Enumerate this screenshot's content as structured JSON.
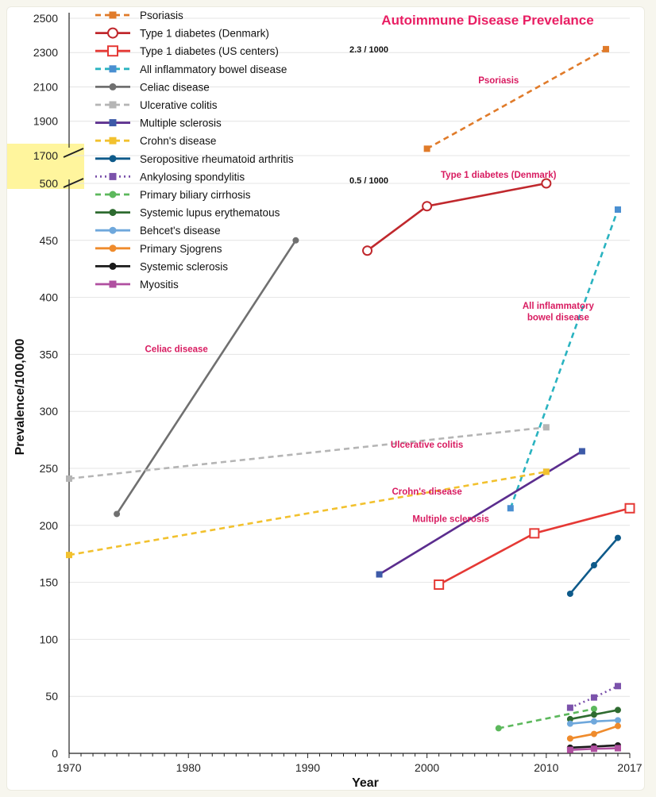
{
  "chart_data": {
    "type": "line",
    "title": "Autoimmune Disease Prevelance",
    "xlabel": "Year",
    "ylabel": "Prevalence/100,000",
    "xlim": [
      1970,
      2017
    ],
    "x_ticks": [
      "1970",
      "1980",
      "1990",
      "2000",
      "2010",
      "2017"
    ],
    "y_ticks_lower": [
      "0",
      "50",
      "100",
      "150",
      "200",
      "250",
      "300",
      "350",
      "400",
      "450",
      "500"
    ],
    "y_ticks_upper": [
      "1700",
      "1900",
      "2100",
      "2300",
      "2500"
    ],
    "axis_break": {
      "from": 500,
      "to": 1700,
      "highlight_color": "#fff59d"
    },
    "grid": true,
    "legend_placement": "top-left",
    "series": [
      {
        "name": "Psoriasis",
        "color": "#e07b2a",
        "dash": "dashed",
        "marker": "square-filled",
        "x": [
          2000,
          2015
        ],
        "values": [
          1740,
          2320
        ]
      },
      {
        "name": "Type 1 diabetes (Denmark)",
        "color": "#c0282d",
        "dash": "solid",
        "marker": "circle-open",
        "x": [
          1995,
          2000,
          2010
        ],
        "values": [
          441,
          480,
          500
        ]
      },
      {
        "name": "Type 1 diabetes (US centers)",
        "color": "#e53935",
        "dash": "solid",
        "marker": "square-open",
        "x": [
          2001,
          2009,
          2017
        ],
        "values": [
          148,
          193,
          215
        ]
      },
      {
        "name": "All inflammatory bowel disease",
        "color": "#2ab3c0",
        "dash": "dashed",
        "marker": "square-filled",
        "markerColor": "#4a8fd1",
        "x": [
          2007,
          2016
        ],
        "values": [
          215,
          477
        ]
      },
      {
        "name": "Celiac disease",
        "color": "#707070",
        "dash": "solid",
        "marker": "circle-filled",
        "x": [
          1974,
          1989
        ],
        "values": [
          210,
          450
        ]
      },
      {
        "name": "Ulcerative colitis",
        "color": "#b5b5b5",
        "dash": "dashed",
        "marker": "square-filled",
        "x": [
          1970,
          2010
        ],
        "values": [
          241,
          286
        ]
      },
      {
        "name": "Multiple sclerosis",
        "color": "#5b2d8e",
        "dash": "solid",
        "marker": "square-filled",
        "markerColor": "#3d5aa8",
        "x": [
          1996,
          2013
        ],
        "values": [
          157,
          265
        ]
      },
      {
        "name": "Crohn's disease",
        "color": "#f2c12e",
        "dash": "dashed",
        "marker": "square-filled",
        "x": [
          1970,
          2010
        ],
        "values": [
          174,
          247
        ]
      },
      {
        "name": "Seropositive rheumatoid arthritis",
        "color": "#0e5a8a",
        "dash": "solid",
        "marker": "circle-filled",
        "x": [
          2012,
          2014,
          2016
        ],
        "values": [
          140,
          165,
          189
        ]
      },
      {
        "name": "Ankylosing spondylitis",
        "color": "#7b52ab",
        "dash": "dotted",
        "marker": "square-filled",
        "x": [
          2012,
          2014,
          2016
        ],
        "values": [
          40,
          49,
          59
        ]
      },
      {
        "name": "Primary biliary cirrhosis",
        "color": "#5cb85c",
        "dash": "dashed",
        "marker": "circle-filled",
        "x": [
          2006,
          2014
        ],
        "values": [
          22,
          39
        ]
      },
      {
        "name": "Systemic lupus erythematous",
        "color": "#2e6b30",
        "dash": "solid",
        "marker": "circle-filled",
        "x": [
          2012,
          2014,
          2016
        ],
        "values": [
          30,
          34,
          38
        ]
      },
      {
        "name": "Behcet's disease",
        "color": "#6fa8dc",
        "dash": "solid",
        "marker": "circle-filled",
        "x": [
          2012,
          2014,
          2016
        ],
        "values": [
          26,
          28,
          29
        ]
      },
      {
        "name": "Primary Sjogrens",
        "color": "#ef8b2c",
        "dash": "solid",
        "marker": "circle-filled",
        "x": [
          2012,
          2014,
          2016
        ],
        "values": [
          13,
          17,
          24
        ]
      },
      {
        "name": "Systemic sclerosis",
        "color": "#1a1a1a",
        "dash": "solid",
        "marker": "circle-filled",
        "x": [
          2012,
          2014,
          2016
        ],
        "values": [
          5,
          6,
          7
        ]
      },
      {
        "name": "Myositis",
        "color": "#b04fa0",
        "dash": "solid",
        "marker": "square-filled",
        "x": [
          2012,
          2014,
          2016
        ],
        "values": [
          3,
          4,
          4.5
        ]
      }
    ],
    "annotations": [
      {
        "text": "Psoriasis",
        "x": 2006,
        "y": 2120
      },
      {
        "text": "Type 1 diabetes (Denmark)",
        "x": 2006,
        "y": 505
      },
      {
        "text": "All inflammatory",
        "x": 2011,
        "y": 390
      },
      {
        "text": "bowel disease",
        "x": 2011,
        "y": 380
      },
      {
        "text": "Celiac disease",
        "x": 1979,
        "y": 352
      },
      {
        "text": "Ulcerative colitis",
        "x": 2000,
        "y": 268
      },
      {
        "text": "Crohn's disease",
        "x": 2000,
        "y": 227
      },
      {
        "text": "Multiple sclerosis",
        "x": 2002,
        "y": 203
      }
    ],
    "notes": [
      {
        "text": "2.3 / 1000",
        "x": 1993.5,
        "y": 2300
      },
      {
        "text": "0.5 / 1000",
        "x": 1993.5,
        "y": 500
      }
    ]
  }
}
